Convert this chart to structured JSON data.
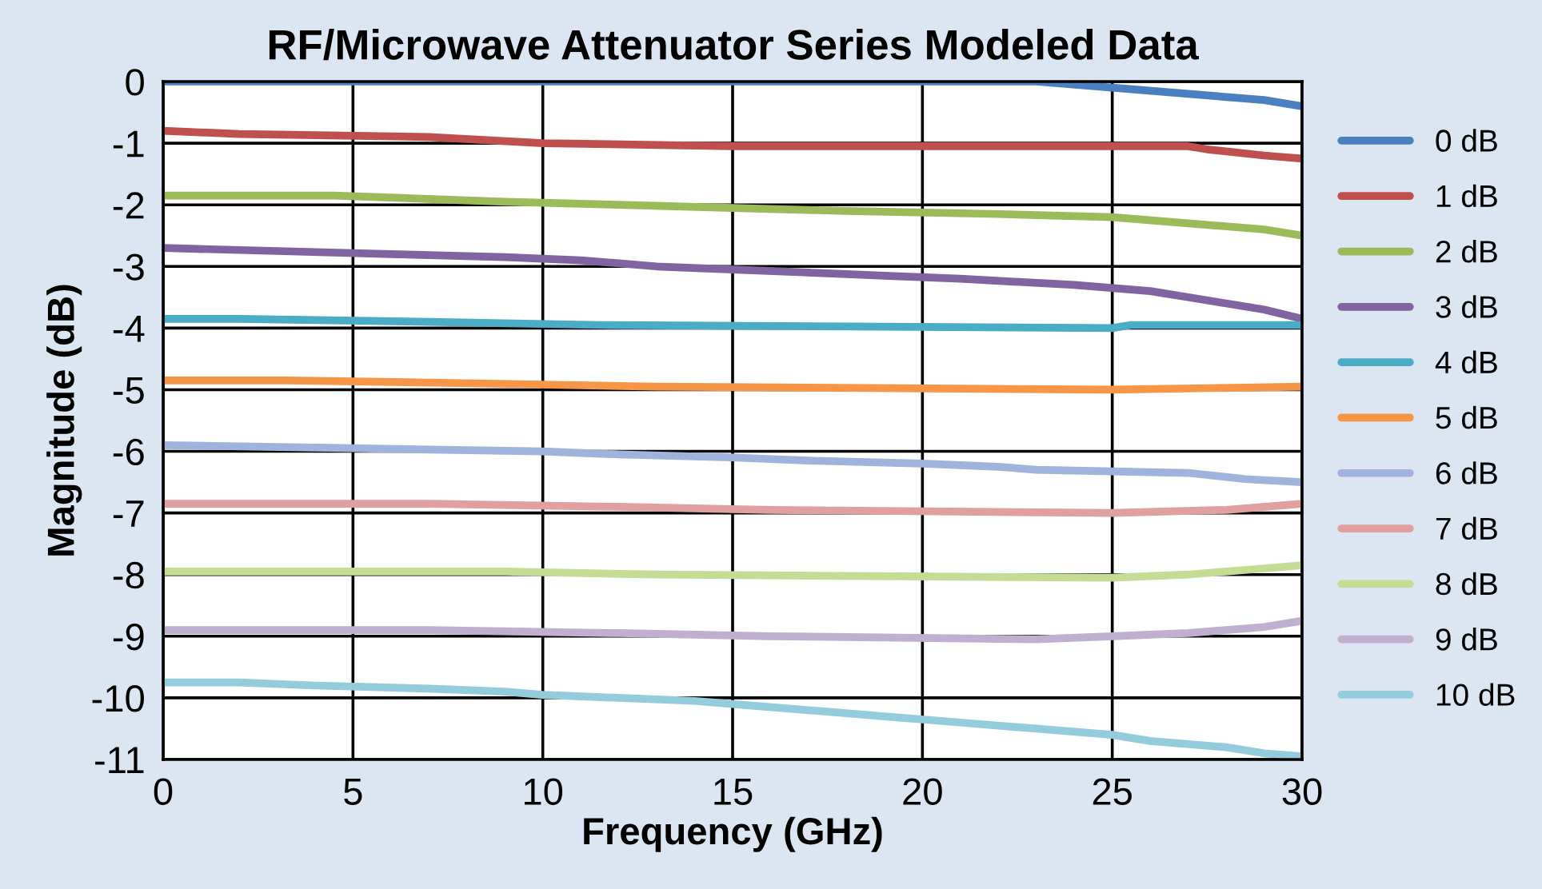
{
  "chart_data": {
    "type": "line",
    "title": "RF/Microwave Attenuator Series Modeled Data",
    "xlabel": "Frequency (GHz)",
    "ylabel": "Magnitude (dB)",
    "xlim": [
      0,
      30
    ],
    "xticks": [
      0,
      5,
      10,
      15,
      20,
      25,
      30
    ],
    "ylim": [
      -11,
      0
    ],
    "yticks": [
      0,
      -1,
      -2,
      -3,
      -4,
      -5,
      -6,
      -7,
      -8,
      -9,
      -10,
      -11
    ],
    "grid": true,
    "legend": "right",
    "marker": "none",
    "line_style": "solid",
    "series": [
      {
        "name": "0 dB",
        "color": "#4a7fc1",
        "x": [
          0,
          23,
          25,
          27,
          29,
          30
        ],
        "values": [
          0,
          0,
          -0.1,
          -0.2,
          -0.3,
          -0.4
        ]
      },
      {
        "name": "1 dB",
        "color": "#c0504d",
        "x": [
          0,
          2,
          7,
          10,
          15,
          27,
          27.5,
          29,
          30
        ],
        "values": [
          -0.8,
          -0.85,
          -0.9,
          -1.0,
          -1.05,
          -1.05,
          -1.1,
          -1.2,
          -1.25
        ]
      },
      {
        "name": "2 dB",
        "color": "#9bbb59",
        "x": [
          0,
          4.5,
          9,
          12,
          15,
          18,
          22,
          25,
          27,
          29,
          30
        ],
        "values": [
          -1.85,
          -1.85,
          -1.95,
          -2.0,
          -2.05,
          -2.1,
          -2.15,
          -2.2,
          -2.3,
          -2.4,
          -2.5
        ]
      },
      {
        "name": "3 dB",
        "color": "#8064a2",
        "x": [
          0,
          3,
          6,
          9,
          11,
          13,
          15,
          17,
          19,
          21,
          24,
          26,
          27,
          28,
          29,
          30
        ],
        "values": [
          -2.7,
          -2.75,
          -2.8,
          -2.85,
          -2.9,
          -3.0,
          -3.05,
          -3.1,
          -3.15,
          -3.2,
          -3.3,
          -3.4,
          -3.5,
          -3.6,
          -3.7,
          -3.85
        ]
      },
      {
        "name": "4 dB",
        "color": "#4bacc6",
        "x": [
          0,
          2,
          7,
          11.5,
          25,
          25.5,
          30
        ],
        "values": [
          -3.85,
          -3.85,
          -3.9,
          -3.95,
          -4.0,
          -3.95,
          -3.95
        ]
      },
      {
        "name": "5 dB",
        "color": "#f79646",
        "x": [
          0,
          3.3,
          8.5,
          13,
          25,
          30
        ],
        "values": [
          -4.85,
          -4.85,
          -4.9,
          -4.95,
          -5.0,
          -4.95
        ]
      },
      {
        "name": "6 dB",
        "color": "#9fb3dc",
        "x": [
          0,
          5,
          10,
          12,
          15,
          17,
          20,
          22,
          23,
          27,
          28.5,
          30
        ],
        "values": [
          -5.9,
          -5.95,
          -6.0,
          -6.05,
          -6.1,
          -6.15,
          -6.2,
          -6.25,
          -6.3,
          -6.35,
          -6.45,
          -6.5
        ]
      },
      {
        "name": "7 dB",
        "color": "#e0a0a0",
        "x": [
          0,
          7,
          12,
          16,
          25,
          28,
          30
        ],
        "values": [
          -6.85,
          -6.85,
          -6.9,
          -6.95,
          -7.0,
          -6.95,
          -6.85
        ]
      },
      {
        "name": "8 dB",
        "color": "#c5dc95",
        "x": [
          0,
          9,
          13,
          25,
          27,
          29,
          30
        ],
        "values": [
          -7.95,
          -7.95,
          -8.0,
          -8.05,
          -8.0,
          -7.9,
          -7.85
        ]
      },
      {
        "name": "9 dB",
        "color": "#bfb0cf",
        "x": [
          0,
          7,
          12,
          16,
          23,
          25,
          27,
          29,
          30
        ],
        "values": [
          -8.9,
          -8.9,
          -8.95,
          -9.0,
          -9.05,
          -9.0,
          -8.95,
          -8.85,
          -8.75
        ]
      },
      {
        "name": "10 dB",
        "color": "#93cddd",
        "x": [
          0,
          2,
          4,
          7,
          9,
          10,
          12,
          14,
          15,
          17,
          19,
          21,
          23,
          25,
          26,
          28,
          29,
          30
        ],
        "values": [
          -9.75,
          -9.75,
          -9.8,
          -9.85,
          -9.9,
          -9.95,
          -10.0,
          -10.05,
          -10.1,
          -10.2,
          -10.3,
          -10.4,
          -10.5,
          -10.6,
          -10.7,
          -10.8,
          -10.9,
          -10.95
        ]
      }
    ]
  }
}
